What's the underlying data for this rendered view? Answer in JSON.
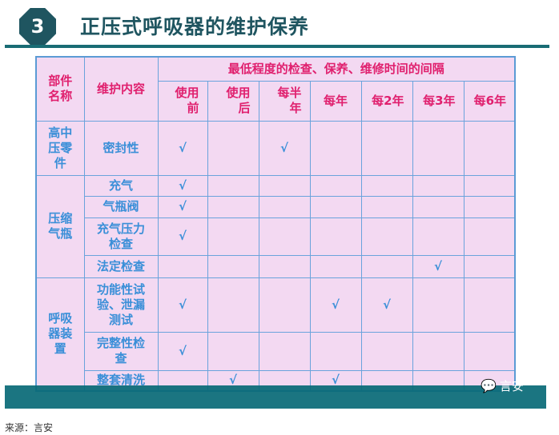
{
  "header": {
    "number": "3",
    "title": "正压式呼吸器的维护保养"
  },
  "table": {
    "col_part": "部件名称",
    "col_content": "维护内容",
    "interval_header": "最低程度的检查、保养、维修时间的间隔",
    "intervals": [
      "使用前",
      "使用后",
      "每半年",
      "每年",
      "每2年",
      "每3年",
      "每6年"
    ],
    "check_mark": "√",
    "groups": [
      {
        "part": "高中压零件",
        "rows": [
          {
            "content": "密封性",
            "checks": [
              1,
              0,
              1,
              0,
              0,
              0,
              0
            ]
          }
        ]
      },
      {
        "part": "压缩气瓶",
        "rows": [
          {
            "content": "充气",
            "checks": [
              1,
              0,
              0,
              0,
              0,
              0,
              0
            ]
          },
          {
            "content": "气瓶阀",
            "checks": [
              1,
              0,
              0,
              0,
              0,
              0,
              0
            ]
          },
          {
            "content": "充气压力检查",
            "checks": [
              1,
              0,
              0,
              0,
              0,
              0,
              0
            ]
          },
          {
            "content": "法定检查",
            "checks": [
              0,
              0,
              0,
              0,
              0,
              1,
              0
            ]
          }
        ]
      },
      {
        "part": "呼吸器装置",
        "rows": [
          {
            "content": "功能性试验、泄漏测试",
            "checks": [
              1,
              0,
              0,
              1,
              1,
              0,
              0
            ]
          },
          {
            "content": "完整性检查",
            "checks": [
              1,
              0,
              0,
              0,
              0,
              0,
              0
            ]
          },
          {
            "content": "整套清洗",
            "checks": [
              0,
              1,
              0,
              1,
              0,
              0,
              0
            ]
          }
        ]
      }
    ]
  },
  "watermark": {
    "icon": "wechat-icon",
    "text": "言安"
  },
  "source": "来源：言安",
  "colors": {
    "teal": "#196c74",
    "header_text": "#e0206e",
    "body_text": "#3a8fd8",
    "cell_bg": "#f3d9f2"
  }
}
